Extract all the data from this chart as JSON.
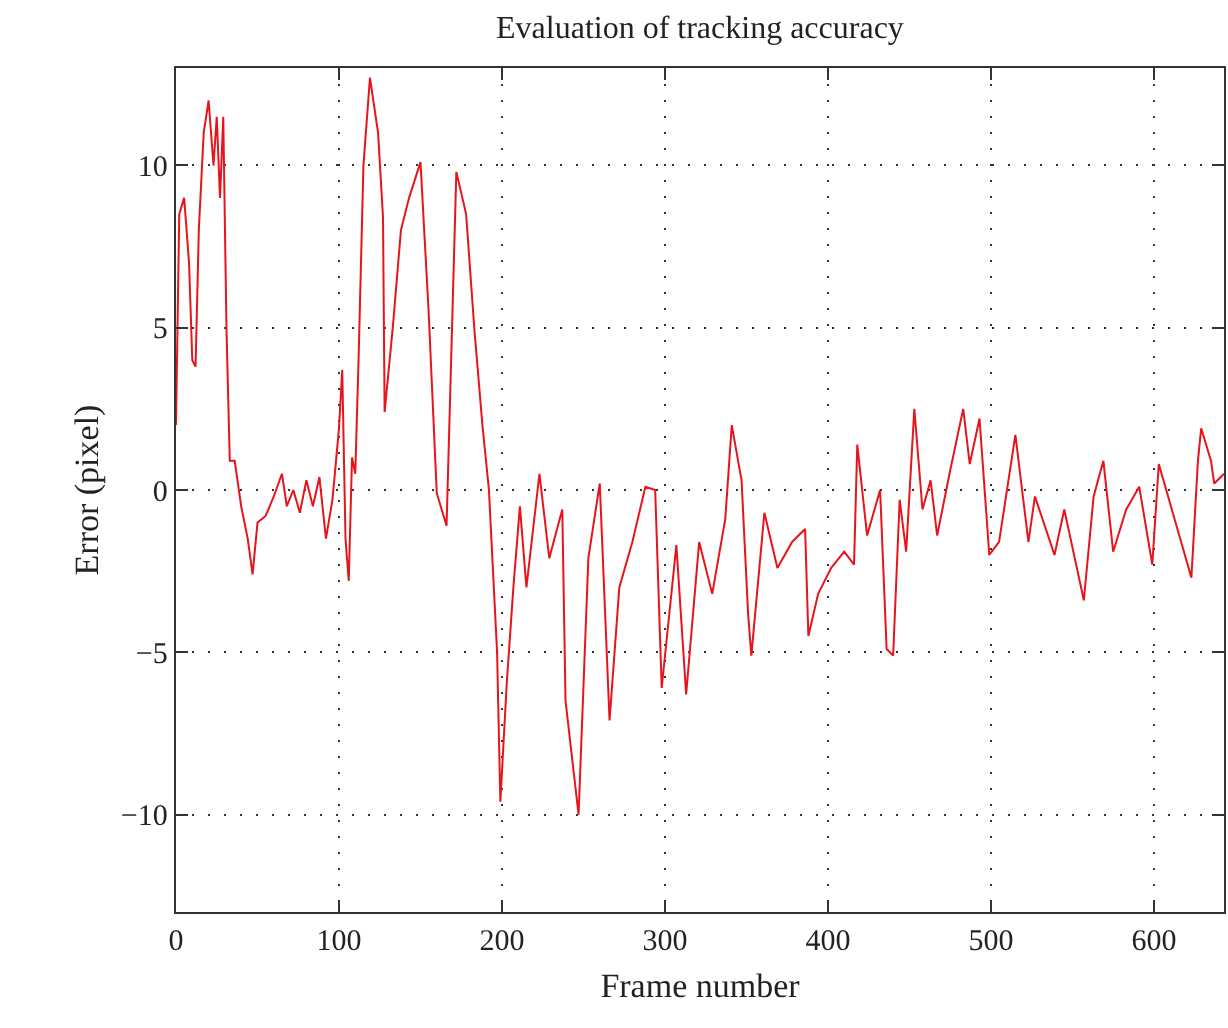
{
  "chart_data": {
    "type": "line",
    "title": "Evaluation of tracking accuracy",
    "xlabel": "Frame number",
    "ylabel": "Error (pixel)",
    "xlim": [
      0,
      643
    ],
    "ylim": [
      -13,
      13
    ],
    "xticks": [
      0,
      100,
      200,
      300,
      400,
      500,
      600
    ],
    "yticks": [
      {
        "value": -10,
        "label": "−10"
      },
      {
        "value": -5,
        "label": "−5"
      },
      0,
      5,
      10
    ],
    "grid": true,
    "marker": "none",
    "line_style": "solid",
    "series": [
      {
        "color": "#e8141c",
        "x": [
          0,
          2,
          5,
          8,
          10,
          12,
          14,
          17,
          20,
          23,
          25,
          27,
          29,
          31,
          33,
          36,
          40,
          44,
          47,
          50,
          55,
          60,
          65,
          68,
          72,
          76,
          80,
          84,
          88,
          92,
          96,
          100,
          102,
          104,
          106,
          108,
          110,
          112,
          115,
          119,
          124,
          127,
          128,
          133,
          138,
          143,
          150,
          155,
          160,
          166,
          172,
          178,
          183,
          188,
          192,
          197,
          199,
          203,
          207,
          211,
          215,
          223,
          229,
          237,
          239,
          247,
          253,
          260,
          266,
          272,
          280,
          288,
          294,
          298,
          307,
          313,
          321,
          329,
          337,
          341,
          347,
          351,
          353,
          361,
          369,
          378,
          386,
          388,
          394,
          402,
          410,
          416,
          418,
          424,
          432,
          436,
          440,
          444,
          448,
          453,
          458,
          463,
          467,
          475,
          483,
          487,
          493,
          499,
          505,
          515,
          523,
          527,
          539,
          545,
          557,
          563,
          569,
          575,
          583,
          591,
          599,
          603,
          611,
          619,
          623,
          627,
          629,
          635,
          637,
          643
        ],
        "values": [
          2,
          8.5,
          9,
          7,
          4,
          3.8,
          8,
          11,
          12,
          10,
          11.5,
          9,
          11.5,
          4.9,
          0.9,
          0.9,
          -0.5,
          -1.5,
          -2.6,
          -1.0,
          -0.8,
          -0.2,
          0.5,
          -0.5,
          0,
          -0.7,
          0.3,
          -0.5,
          0.4,
          -1.5,
          -0.3,
          1.9,
          3.7,
          -1.5,
          -2.8,
          1,
          0.5,
          4,
          10,
          12.7,
          11,
          8.4,
          2.4,
          5,
          8,
          9,
          10.1,
          5.5,
          -0.1,
          -1.1,
          9.8,
          8.5,
          5,
          2,
          0,
          -5,
          -9.6,
          -5.9,
          -3,
          -0.5,
          -3.0,
          0.5,
          -2.1,
          -0.6,
          -6.5,
          -10,
          -2.1,
          0.2,
          -7.1,
          -3.0,
          -1.6,
          0.1,
          0,
          -6.1,
          -1.7,
          -6.3,
          -1.6,
          -3.2,
          -0.9,
          2.0,
          0.3,
          -3.8,
          -5.1,
          -0.7,
          -2.4,
          -1.6,
          -1.2,
          -4.5,
          -3.2,
          -2.4,
          -1.9,
          -2.3,
          1.4,
          -1.4,
          0,
          -4.9,
          -5.1,
          -0.3,
          -1.9,
          2.5,
          -0.6,
          0.3,
          -1.4,
          0.6,
          2.5,
          0.8,
          2.2,
          -2.0,
          -1.6,
          1.7,
          -1.6,
          -0.2,
          -2.0,
          -0.6,
          -3.4,
          -0.2,
          0.9,
          -1.9,
          -0.6,
          0.1,
          -2.3,
          0.8,
          -0.6,
          -2.0,
          -2.7,
          0.9,
          1.9,
          0.9,
          0.2,
          0.5
        ]
      }
    ]
  }
}
